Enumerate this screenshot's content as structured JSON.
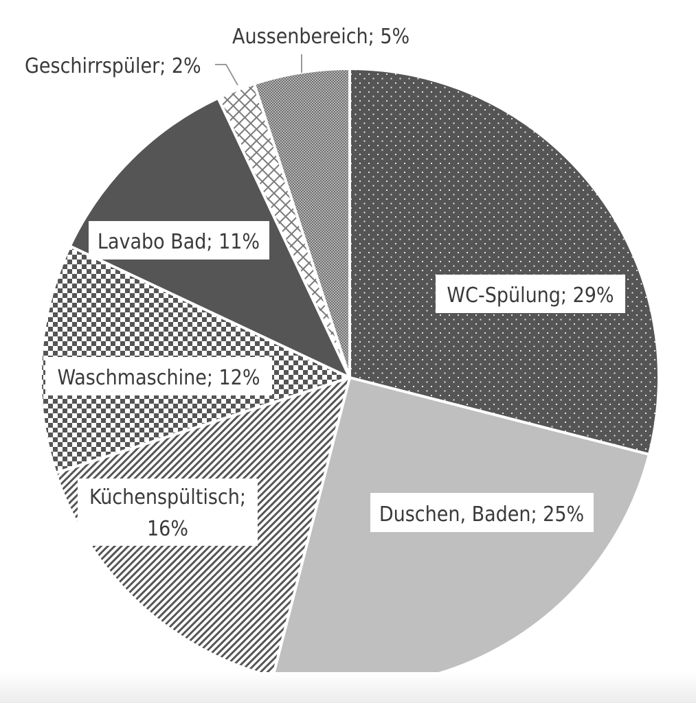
{
  "chart_data": {
    "type": "pie",
    "title": "",
    "start_angle_deg": 0,
    "direction": "clockwise",
    "categories": [
      "WC-Spülung",
      "Duschen, Baden",
      "Küchenspültisch",
      "Waschmaschine",
      "Lavabo Bad",
      "Geschirrspüler",
      "Aussenbereich"
    ],
    "values": [
      29,
      25,
      16,
      12,
      11,
      2,
      5
    ],
    "unit": "%",
    "labels": [
      {
        "text": "WC-Spülung; 29%",
        "position": "inside",
        "boxed": true
      },
      {
        "text": "Duschen, Baden; 25%",
        "position": "inside",
        "boxed": true
      },
      {
        "text": "Küchenspültisch; 16%",
        "position": "inside",
        "boxed": true
      },
      {
        "text": "Waschmaschine; 12%",
        "position": "inside",
        "boxed": true
      },
      {
        "text": "Lavabo Bad; 11%",
        "position": "inside",
        "boxed": true
      },
      {
        "text": "Geschirrspüler; 2%",
        "position": "outside",
        "leader_line": true
      },
      {
        "text": "Aussenbereich; 5%",
        "position": "outside",
        "leader_line": true
      }
    ],
    "fills": [
      {
        "category": "WC-Spülung",
        "pattern": "dots",
        "color": "#555555"
      },
      {
        "category": "Duschen, Baden",
        "pattern": "solid",
        "color": "#bfbfbf"
      },
      {
        "category": "Küchenspültisch",
        "pattern": "diagonal-stripes",
        "color": "#555555"
      },
      {
        "category": "Waschmaschine",
        "pattern": "checkerboard",
        "color": "#555555"
      },
      {
        "category": "Lavabo Bad",
        "pattern": "solid",
        "color": "#555555"
      },
      {
        "category": "Geschirrspüler",
        "pattern": "diagonal-crosshatch",
        "color": "#7a7a7a"
      },
      {
        "category": "Aussenbereich",
        "pattern": "fine-checker",
        "color": "#8a8a8a"
      }
    ],
    "legend": "none"
  },
  "labels": {
    "wc": {
      "line1": "WC-Spülung; 29%"
    },
    "duschen": {
      "line1": "Duschen, Baden; 25%"
    },
    "kuechen": {
      "line1": "Küchenspültisch;",
      "line2": "16%"
    },
    "wasch": {
      "line1": "Waschmaschine; 12%"
    },
    "lavabo": {
      "line1": "Lavabo Bad; 11%"
    },
    "geschirr": {
      "line1": "Geschirrspüler; 2%"
    },
    "aussen": {
      "line1": "Aussenbereich; 5%"
    }
  }
}
